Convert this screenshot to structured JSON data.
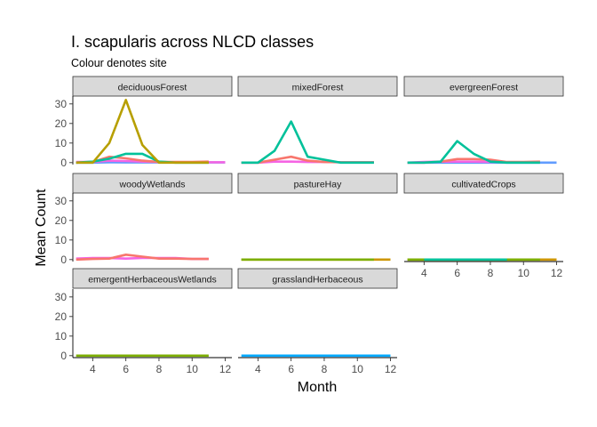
{
  "chart_data": {
    "type": "line",
    "title": "I. scapularis across NLCD classes",
    "subtitle": "Colour denotes site",
    "xlabel": "Month",
    "ylabel": "Mean Count",
    "xlim": [
      2.8,
      12.4
    ],
    "ylim": [
      -1,
      34
    ],
    "x_ticks": [
      4,
      6,
      8,
      10,
      12
    ],
    "y_ticks": [
      0,
      10,
      20,
      30
    ],
    "facet_order": [
      "deciduousForest",
      "mixedForest",
      "evergreenForest",
      "woodyWetlands",
      "pastureHay",
      "cultivatedCrops",
      "emergentHerbaceousWetlands",
      "grasslandHerbaceous"
    ],
    "colors": {
      "olive": "#b79f00",
      "teal": "#00be67",
      "red": "#f8766d",
      "magenta": "#f564e3",
      "blue": "#619cff",
      "green": "#7cae00",
      "cyan": "#00a9ff",
      "orange": "#cd9600",
      "sea": "#00c19a"
    },
    "facets": {
      "deciduousForest": [
        {
          "color": "blue",
          "x": [
            3,
            4,
            5,
            6,
            7,
            8,
            9,
            10,
            11,
            12
          ],
          "y": [
            0,
            0,
            0.2,
            0.1,
            0.1,
            0.1,
            0.1,
            0.1,
            0.1,
            0.1
          ]
        },
        {
          "color": "magenta",
          "x": [
            3,
            4,
            5,
            6,
            7,
            8,
            9,
            10,
            11,
            12
          ],
          "y": [
            0.3,
            0.3,
            1.0,
            0.8,
            0.5,
            0.3,
            0.2,
            0.2,
            0.2,
            0.2
          ]
        },
        {
          "color": "red",
          "x": [
            3,
            4,
            5,
            6,
            7,
            8,
            9,
            10,
            11
          ],
          "y": [
            0,
            0.3,
            3,
            2.2,
            1,
            0.3,
            0.3,
            0.3,
            0.5
          ]
        },
        {
          "color": "sea",
          "x": [
            3,
            4,
            5,
            6,
            7,
            8,
            9,
            10,
            11
          ],
          "y": [
            0,
            0.5,
            2,
            4.5,
            4.5,
            0.5,
            0,
            0,
            0
          ]
        },
        {
          "color": "olive",
          "x": [
            3,
            4,
            5,
            6,
            7,
            8,
            9,
            10,
            11
          ],
          "y": [
            0,
            0,
            10,
            32,
            9,
            0,
            0,
            0,
            0
          ]
        }
      ],
      "mixedForest": [
        {
          "color": "magenta",
          "x": [
            3,
            4,
            5,
            6,
            7,
            8,
            9,
            10,
            11
          ],
          "y": [
            0,
            0,
            0.5,
            0.5,
            0.3,
            0.3,
            0.2,
            0.2,
            0.2
          ]
        },
        {
          "color": "red",
          "x": [
            3,
            4,
            5,
            6,
            7,
            8,
            9,
            10,
            11
          ],
          "y": [
            0,
            0,
            1.5,
            3,
            1,
            0.3,
            0.2,
            0.2,
            0.2
          ]
        },
        {
          "color": "sea",
          "x": [
            3,
            4,
            5,
            6,
            7,
            8,
            9,
            10,
            11
          ],
          "y": [
            0,
            0,
            6,
            21,
            3,
            1.5,
            0,
            0,
            0
          ]
        }
      ],
      "evergreenForest": [
        {
          "color": "blue",
          "x": [
            3,
            4,
            5,
            6,
            7,
            8,
            9,
            10,
            11,
            12
          ],
          "y": [
            0,
            0,
            0,
            0,
            0,
            0,
            0,
            0,
            0,
            0
          ]
        },
        {
          "color": "magenta",
          "x": [
            3,
            4,
            5,
            6,
            7,
            8,
            9,
            10,
            11
          ],
          "y": [
            0,
            0.3,
            0.5,
            0.5,
            0.5,
            0.3,
            0.2,
            0.2,
            0.2
          ]
        },
        {
          "color": "red",
          "x": [
            3,
            4,
            5,
            6,
            7,
            8,
            9,
            10,
            11
          ],
          "y": [
            0,
            0,
            0.5,
            1.8,
            1.8,
            1.5,
            0.3,
            0.3,
            0.5
          ]
        },
        {
          "color": "sea",
          "x": [
            3,
            4,
            5,
            6,
            7,
            8,
            9,
            10,
            11
          ],
          "y": [
            0,
            0,
            0.5,
            11,
            4.5,
            0.5,
            0,
            0,
            0
          ]
        }
      ],
      "woodyWetlands": [
        {
          "color": "magenta",
          "x": [
            3,
            4,
            5,
            6,
            7,
            8,
            9,
            10,
            11
          ],
          "y": [
            0.5,
            0.8,
            0.8,
            0.5,
            0.8,
            0.8,
            0.8,
            0.3,
            0.3
          ]
        },
        {
          "color": "red",
          "x": [
            3,
            4,
            5,
            6,
            7,
            8,
            9,
            10,
            11
          ],
          "y": [
            0,
            0.3,
            0.5,
            2.5,
            1.5,
            0.5,
            0.5,
            0.3,
            0.3
          ]
        }
      ],
      "pastureHay": [
        {
          "color": "orange",
          "x": [
            3,
            4,
            5,
            6,
            7,
            8,
            9,
            10,
            11,
            12
          ],
          "y": [
            0,
            0,
            0,
            0,
            0,
            0,
            0,
            0,
            0,
            0
          ]
        },
        {
          "color": "green",
          "x": [
            3,
            4,
            5,
            6,
            7,
            8,
            9,
            10,
            11
          ],
          "y": [
            0,
            0,
            0,
            0,
            0,
            0,
            0,
            0,
            0
          ]
        }
      ],
      "cultivatedCrops": [
        {
          "color": "orange",
          "x": [
            3,
            4,
            5,
            6,
            7,
            8,
            9,
            10,
            11,
            12
          ],
          "y": [
            0,
            0,
            0,
            0,
            0,
            0,
            0,
            0,
            0,
            0
          ]
        },
        {
          "color": "green",
          "x": [
            3,
            4,
            5,
            6,
            7,
            8,
            9,
            10,
            11
          ],
          "y": [
            0,
            0,
            0,
            0,
            0,
            0,
            0,
            0,
            0
          ]
        },
        {
          "color": "sea",
          "x": [
            4,
            5,
            6,
            7,
            8,
            9
          ],
          "y": [
            0,
            0,
            0,
            0,
            0,
            0
          ]
        }
      ],
      "emergentHerbaceousWetlands": [
        {
          "color": "green",
          "x": [
            3,
            4,
            5,
            6,
            7,
            8,
            9,
            10,
            11
          ],
          "y": [
            0,
            0,
            0,
            0,
            0,
            0,
            0,
            0,
            0
          ]
        }
      ],
      "grasslandHerbaceous": [
        {
          "color": "cyan",
          "x": [
            3,
            4,
            5,
            6,
            7,
            8,
            9,
            10,
            11,
            12
          ],
          "y": [
            0,
            0,
            0,
            0,
            0,
            0,
            0,
            0,
            0,
            0
          ]
        }
      ]
    }
  }
}
